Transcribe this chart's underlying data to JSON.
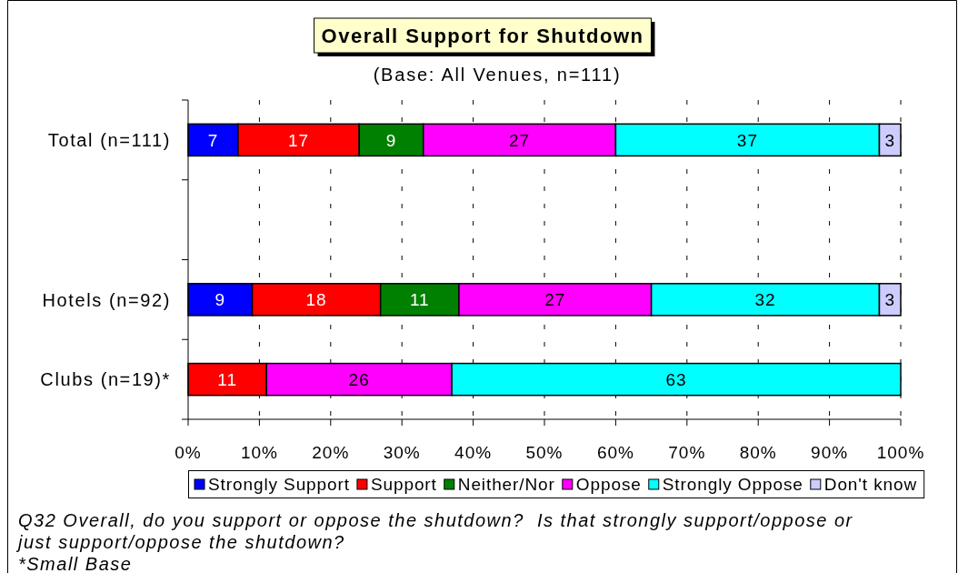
{
  "chart_data": {
    "type": "bar",
    "orientation": "horizontal",
    "stacked": true,
    "title": "Overall Support for Shutdown",
    "subtitle": "(Base: All Venues, n=111)",
    "categories": [
      "Total (n=111)",
      null,
      "Hotels (n=92)",
      "Clubs (n=19)*"
    ],
    "series": [
      {
        "name": "Strongly Support",
        "color": "#0000ff",
        "values": [
          7,
          null,
          9,
          null
        ]
      },
      {
        "name": "Support",
        "color": "#ff0000",
        "values": [
          17,
          null,
          18,
          11
        ]
      },
      {
        "name": "Neither/Nor",
        "color": "#008000",
        "values": [
          9,
          null,
          11,
          null
        ]
      },
      {
        "name": "Oppose",
        "color": "#ff00ff",
        "values": [
          27,
          null,
          27,
          26
        ]
      },
      {
        "name": "Strongly Oppose",
        "color": "#00ffff",
        "values": [
          37,
          null,
          32,
          63
        ]
      },
      {
        "name": "Don't know",
        "color": "#ccccff",
        "values": [
          3,
          null,
          3,
          null
        ]
      }
    ],
    "xlim": [
      0,
      100
    ],
    "xticks": [
      {
        "value": 0,
        "label": "0%"
      },
      {
        "value": 10,
        "label": "10%"
      },
      {
        "value": 20,
        "label": "20%"
      },
      {
        "value": 30,
        "label": "30%"
      },
      {
        "value": 40,
        "label": "40%"
      },
      {
        "value": 50,
        "label": "50%"
      },
      {
        "value": 60,
        "label": "60%"
      },
      {
        "value": 70,
        "label": "70%"
      },
      {
        "value": 80,
        "label": "80%"
      },
      {
        "value": 90,
        "label": "90%"
      },
      {
        "value": 100,
        "label": "100%"
      }
    ],
    "grid": "x",
    "legend": "bottom",
    "data_labels": true,
    "annotations": [
      "Q32 Overall, do you support or oppose the shutdown?  Is that strongly support/oppose or just support/oppose the shutdown?",
      "*Small Base"
    ]
  }
}
